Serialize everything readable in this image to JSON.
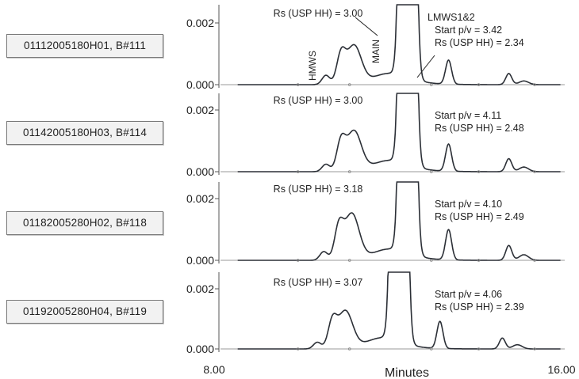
{
  "chart_data": {
    "type": "line",
    "xlabel": "Minutes",
    "x_tick_labels": [
      "8.00",
      "16.00"
    ],
    "xlim": [
      8.0,
      16.0
    ],
    "ylim": [
      0.0,
      0.0024
    ],
    "y_tick_labels": [
      "0.000",
      "0.002"
    ],
    "y_ticks": [
      0.0,
      0.002
    ],
    "panels": [
      {
        "lot": "01112005180H01, B#111",
        "rs_main": "Rs (USP HH) = 3.00",
        "right_lines": [
          "LMWS1&2",
          "Start p/v = 3.42",
          "Rs (USP HH) = 2.34"
        ],
        "peak_labels": [
          "HMWS",
          "MAIN"
        ],
        "peaks": [
          {
            "t": 10.45,
            "h": 0.0003,
            "w": 0.09
          },
          {
            "t": 10.8,
            "h": 0.0009,
            "w": 0.1
          },
          {
            "t": 11.1,
            "h": 0.00125,
            "w": 0.17
          },
          {
            "t": 11.85,
            "h": 0.0003,
            "w": 0.35
          },
          {
            "t": 12.35,
            "h": 0.06,
            "w": 0.1
          },
          {
            "t": 13.3,
            "h": 0.00078,
            "w": 0.07
          },
          {
            "t": 14.7,
            "h": 0.00036,
            "w": 0.07
          },
          {
            "t": 15.05,
            "h": 0.00012,
            "w": 0.11
          }
        ]
      },
      {
        "lot": "01142005180H03, B#114",
        "rs_main": "Rs (USP HH) = 3.00",
        "right_lines": [
          "Start p/v = 4.11",
          "Rs (USP HH) = 2.48"
        ],
        "peaks": [
          {
            "t": 10.45,
            "h": 0.00024,
            "w": 0.09
          },
          {
            "t": 10.8,
            "h": 0.0009,
            "w": 0.1
          },
          {
            "t": 11.1,
            "h": 0.0013,
            "w": 0.17
          },
          {
            "t": 11.85,
            "h": 0.0003,
            "w": 0.35
          },
          {
            "t": 12.35,
            "h": 0.06,
            "w": 0.1
          },
          {
            "t": 13.3,
            "h": 0.00088,
            "w": 0.07
          },
          {
            "t": 14.7,
            "h": 0.00042,
            "w": 0.07
          },
          {
            "t": 15.05,
            "h": 0.00015,
            "w": 0.11
          }
        ]
      },
      {
        "lot": "01182005280H02, B#118",
        "rs_main": "Rs (USP HH) = 3.18",
        "right_lines": [
          "Start p/v = 4.10",
          "Rs (USP HH) = 2.49"
        ],
        "peaks": [
          {
            "t": 10.4,
            "h": 0.00028,
            "w": 0.09
          },
          {
            "t": 10.75,
            "h": 0.001,
            "w": 0.1
          },
          {
            "t": 11.05,
            "h": 0.0015,
            "w": 0.17
          },
          {
            "t": 11.85,
            "h": 0.0003,
            "w": 0.35
          },
          {
            "t": 12.35,
            "h": 0.06,
            "w": 0.1
          },
          {
            "t": 13.3,
            "h": 0.00098,
            "w": 0.07
          },
          {
            "t": 14.7,
            "h": 0.00048,
            "w": 0.07
          },
          {
            "t": 15.05,
            "h": 0.00018,
            "w": 0.11
          }
        ]
      },
      {
        "lot": "01192005280H04, B#119",
        "rs_main": "Rs (USP HH) = 3.07",
        "right_lines": [
          "Start p/v = 4.06",
          "Rs (USP HH) = 2.39"
        ],
        "peaks": [
          {
            "t": 10.25,
            "h": 0.00022,
            "w": 0.09
          },
          {
            "t": 10.6,
            "h": 0.00085,
            "w": 0.1
          },
          {
            "t": 10.9,
            "h": 0.00125,
            "w": 0.17
          },
          {
            "t": 11.7,
            "h": 0.0003,
            "w": 0.35
          },
          {
            "t": 12.15,
            "h": 0.06,
            "w": 0.1
          },
          {
            "t": 13.1,
            "h": 0.0009,
            "w": 0.07
          },
          {
            "t": 14.55,
            "h": 0.00036,
            "w": 0.07
          },
          {
            "t": 14.9,
            "h": 0.00014,
            "w": 0.11
          }
        ]
      }
    ]
  }
}
